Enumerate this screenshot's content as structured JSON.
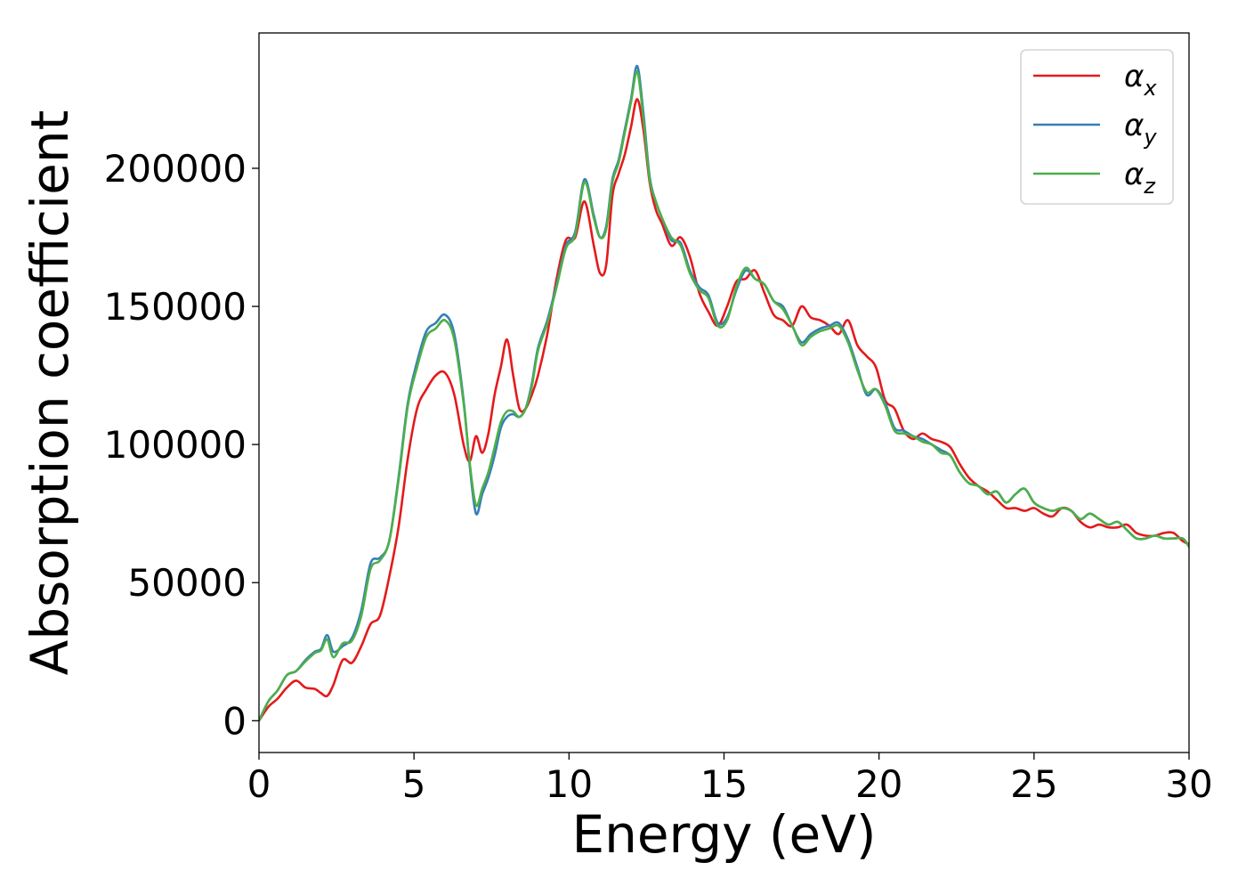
{
  "chart_data": {
    "type": "line",
    "title": "",
    "xlabel": "Energy (eV)",
    "ylabel": "Absorption coefficient",
    "xlim": [
      0,
      30
    ],
    "ylim": [
      -11500,
      249000
    ],
    "x_ticks": [
      0,
      5,
      10,
      15,
      20,
      25,
      30
    ],
    "y_ticks": [
      0,
      50000,
      100000,
      150000,
      200000
    ],
    "grid": false,
    "legend_position": "top-right",
    "series": [
      {
        "name": "α_x",
        "legend_base": "α",
        "legend_sub": "x",
        "color": "#e41a1c",
        "x": [
          0,
          0.3,
          0.6,
          0.9,
          1.2,
          1.5,
          1.8,
          2.0,
          2.2,
          2.4,
          2.7,
          3.0,
          3.3,
          3.6,
          3.9,
          4.2,
          4.5,
          4.8,
          5.1,
          5.4,
          5.7,
          6.0,
          6.3,
          6.6,
          6.8,
          7.0,
          7.2,
          7.4,
          7.6,
          7.8,
          8.0,
          8.2,
          8.4,
          8.6,
          8.8,
          9.0,
          9.3,
          9.6,
          9.9,
          10.2,
          10.5,
          10.8,
          11.0,
          11.2,
          11.4,
          11.6,
          11.8,
          12.0,
          12.2,
          12.4,
          12.6,
          12.8,
          13.0,
          13.3,
          13.6,
          13.9,
          14.2,
          14.5,
          14.8,
          15.1,
          15.4,
          15.7,
          16.0,
          16.3,
          16.6,
          16.9,
          17.2,
          17.5,
          17.8,
          18.1,
          18.4,
          18.7,
          19.0,
          19.3,
          19.6,
          19.9,
          20.2,
          20.5,
          20.8,
          21.1,
          21.4,
          21.7,
          22.0,
          22.3,
          22.6,
          22.9,
          23.2,
          23.5,
          23.8,
          24.1,
          24.4,
          24.7,
          25.0,
          25.3,
          25.6,
          25.9,
          26.2,
          26.5,
          26.8,
          27.1,
          27.4,
          27.7,
          28.0,
          28.3,
          28.6,
          28.9,
          29.2,
          29.5,
          29.8,
          30.0
        ],
        "y": [
          0,
          5000,
          8000,
          12000,
          14500,
          12000,
          11500,
          10000,
          9000,
          13000,
          22000,
          21000,
          27000,
          35000,
          38000,
          52000,
          70000,
          95000,
          113000,
          120000,
          125000,
          126000,
          118000,
          100000,
          94000,
          103000,
          97000,
          104000,
          118000,
          128000,
          138000,
          125000,
          113000,
          113000,
          118000,
          125000,
          140000,
          160000,
          174000,
          175000,
          188000,
          172000,
          162000,
          165000,
          190000,
          198000,
          205000,
          215000,
          225000,
          214000,
          195000,
          185000,
          180000,
          172000,
          175000,
          168000,
          155000,
          148000,
          143000,
          150000,
          159000,
          160000,
          163000,
          155000,
          147000,
          145000,
          143000,
          150000,
          146000,
          145000,
          143000,
          140000,
          145000,
          136000,
          132000,
          128000,
          116000,
          113000,
          105000,
          102000,
          104000,
          102000,
          101000,
          99000,
          93000,
          88000,
          85000,
          83000,
          80000,
          77000,
          77000,
          76000,
          77000,
          75000,
          74000,
          77000,
          76000,
          72000,
          70000,
          71000,
          70000,
          70000,
          71000,
          68000,
          67000,
          67000,
          68000,
          68000,
          65000,
          64000
        ]
      },
      {
        "name": "α_y",
        "legend_base": "α",
        "legend_sub": "y",
        "color": "#377eb8",
        "x": [
          0,
          0.3,
          0.6,
          0.9,
          1.2,
          1.5,
          1.8,
          2.0,
          2.2,
          2.4,
          2.7,
          3.0,
          3.3,
          3.6,
          3.9,
          4.2,
          4.5,
          4.8,
          5.1,
          5.4,
          5.7,
          6.0,
          6.3,
          6.6,
          6.8,
          7.0,
          7.2,
          7.4,
          7.6,
          7.8,
          8.0,
          8.2,
          8.4,
          8.6,
          8.8,
          9.0,
          9.3,
          9.6,
          9.9,
          10.2,
          10.5,
          10.8,
          11.0,
          11.2,
          11.4,
          11.6,
          11.8,
          12.0,
          12.2,
          12.4,
          12.6,
          12.8,
          13.0,
          13.3,
          13.6,
          13.9,
          14.2,
          14.5,
          14.8,
          15.1,
          15.4,
          15.7,
          16.0,
          16.3,
          16.6,
          16.9,
          17.2,
          17.5,
          17.8,
          18.1,
          18.4,
          18.7,
          19.0,
          19.3,
          19.6,
          19.9,
          20.2,
          20.5,
          20.8,
          21.1,
          21.4,
          21.7,
          22.0,
          22.3,
          22.6,
          22.9,
          23.2,
          23.5,
          23.8,
          24.1,
          24.4,
          24.7,
          25.0,
          25.3,
          25.6,
          25.9,
          26.2,
          26.5,
          26.8,
          27.1,
          27.4,
          27.7,
          28.0,
          28.3,
          28.6,
          28.9,
          29.2,
          29.5,
          29.8,
          30.0
        ],
        "y": [
          0,
          7000,
          11000,
          16500,
          18000,
          22000,
          25000,
          26000,
          31000,
          25000,
          27000,
          30000,
          40000,
          57000,
          59000,
          65000,
          88000,
          115000,
          130000,
          141000,
          144000,
          147000,
          140000,
          116000,
          92000,
          75000,
          82000,
          88000,
          96000,
          106000,
          110000,
          111000,
          110000,
          113000,
          122000,
          135000,
          145000,
          158000,
          172000,
          177000,
          196000,
          183000,
          175000,
          179000,
          196000,
          203000,
          214000,
          225000,
          237000,
          220000,
          197000,
          188000,
          182000,
          174000,
          173000,
          163000,
          157000,
          154000,
          144000,
          146000,
          156000,
          163000,
          160000,
          158000,
          152000,
          150000,
          143000,
          137000,
          140000,
          142000,
          143000,
          144000,
          138000,
          128000,
          118000,
          120000,
          115000,
          106000,
          105000,
          103000,
          102000,
          100000,
          98000,
          96000,
          90000,
          86000,
          85000,
          82000,
          83000,
          79000,
          82000,
          84000,
          79000,
          77000,
          76000,
          77000,
          76000,
          73000,
          75000,
          73000,
          71000,
          72000,
          69000,
          66000,
          66000,
          67000,
          66000,
          66000,
          66000,
          63000
        ]
      },
      {
        "name": "α_z",
        "legend_base": "α",
        "legend_sub": "z",
        "color": "#4daf4a",
        "x": [
          0,
          0.3,
          0.6,
          0.9,
          1.2,
          1.5,
          1.8,
          2.0,
          2.2,
          2.4,
          2.7,
          3.0,
          3.3,
          3.6,
          3.9,
          4.2,
          4.5,
          4.8,
          5.1,
          5.4,
          5.7,
          6.0,
          6.3,
          6.6,
          6.8,
          7.0,
          7.2,
          7.4,
          7.6,
          7.8,
          8.0,
          8.2,
          8.4,
          8.6,
          8.8,
          9.0,
          9.3,
          9.6,
          9.9,
          10.2,
          10.5,
          10.8,
          11.0,
          11.2,
          11.4,
          11.6,
          11.8,
          12.0,
          12.2,
          12.4,
          12.6,
          12.8,
          13.0,
          13.3,
          13.6,
          13.9,
          14.2,
          14.5,
          14.8,
          15.1,
          15.4,
          15.7,
          16.0,
          16.3,
          16.6,
          16.9,
          17.2,
          17.5,
          17.8,
          18.1,
          18.4,
          18.7,
          19.0,
          19.3,
          19.6,
          19.9,
          20.2,
          20.5,
          20.8,
          21.1,
          21.4,
          21.7,
          22.0,
          22.3,
          22.6,
          22.9,
          23.2,
          23.5,
          23.8,
          24.1,
          24.4,
          24.7,
          25.0,
          25.3,
          25.6,
          25.9,
          26.2,
          26.5,
          26.8,
          27.1,
          27.4,
          27.7,
          28.0,
          28.3,
          28.6,
          28.9,
          29.2,
          29.5,
          29.8,
          30.0
        ],
        "y": [
          0,
          7000,
          11000,
          16500,
          18000,
          21500,
          24500,
          25500,
          29500,
          23000,
          28000,
          29000,
          38000,
          55000,
          58000,
          65000,
          87000,
          114000,
          128000,
          139000,
          142000,
          145000,
          138000,
          115000,
          93000,
          78000,
          84000,
          90000,
          99000,
          108000,
          112000,
          112000,
          110000,
          113000,
          121000,
          134000,
          144000,
          157000,
          171000,
          176000,
          195000,
          182000,
          175000,
          178000,
          195000,
          202000,
          213000,
          224000,
          235000,
          218000,
          196000,
          188000,
          182000,
          175000,
          172000,
          162000,
          156000,
          153000,
          143000,
          145000,
          157000,
          164000,
          160000,
          158000,
          152000,
          149000,
          143000,
          136000,
          139000,
          141000,
          142000,
          143000,
          137000,
          127000,
          119000,
          120000,
          114000,
          105000,
          104000,
          103000,
          101000,
          100000,
          97000,
          96000,
          90000,
          86000,
          85000,
          82000,
          83000,
          79000,
          82000,
          84000,
          79000,
          77000,
          76000,
          77000,
          76000,
          73000,
          75000,
          73000,
          71000,
          72000,
          69000,
          66000,
          66000,
          67000,
          66000,
          66000,
          66000,
          63000
        ]
      }
    ]
  }
}
